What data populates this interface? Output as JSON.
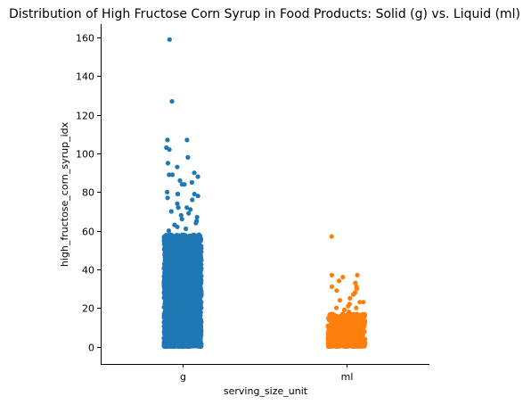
{
  "chart_data": {
    "type": "scatter",
    "subtype": "strip",
    "title": "Distribution of High Fructose Corn Syrup in Food Products: Solid (g) vs. Liquid (ml)",
    "xlabel": "serving_size_unit",
    "ylabel": "high_fructose_corn_syrup_idx",
    "categories": [
      "g",
      "ml"
    ],
    "ylim": [
      -9,
      167
    ],
    "yticks": [
      0,
      20,
      40,
      60,
      80,
      100,
      120,
      140,
      160
    ],
    "grid": false,
    "series": [
      {
        "name": "g",
        "color": "#1f77b4",
        "notable_values": [
          159,
          127,
          107,
          107,
          103,
          102,
          98,
          95,
          93,
          90,
          89,
          89,
          88,
          86,
          85,
          84,
          84,
          80,
          79,
          79,
          79,
          78,
          77,
          76,
          74,
          72,
          72,
          71,
          70,
          69,
          68,
          67,
          66,
          65,
          64,
          63,
          62,
          61,
          60
        ],
        "dense_range": [
          0,
          58
        ]
      },
      {
        "name": "ml",
        "color": "#ff7f0e",
        "notable_values": [
          57,
          37,
          37,
          36,
          34,
          33,
          31,
          31,
          30,
          29,
          28,
          27,
          25,
          24,
          23,
          23,
          22,
          21,
          20,
          20,
          19,
          18
        ],
        "dense_range": [
          0,
          17
        ]
      }
    ]
  }
}
